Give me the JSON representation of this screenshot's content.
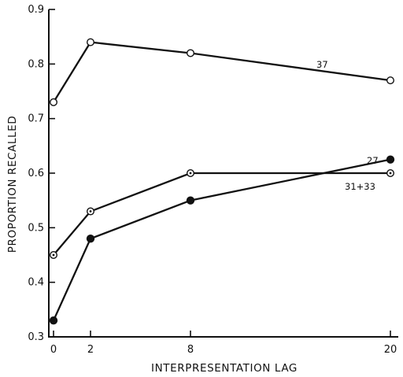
{
  "chart_data": {
    "type": "line",
    "title": "",
    "xlabel": "INTERPRESENTATION LAG",
    "ylabel": "PROPORTION RECALLED",
    "x": [
      0,
      2,
      8,
      20
    ],
    "xticks": [
      "0",
      "2",
      "8",
      "20"
    ],
    "xlim": [
      0,
      20
    ],
    "ylim": [
      0.3,
      0.9
    ],
    "yticks": [
      "0.3",
      "0.4",
      "0.5",
      "0.6",
      "0.7",
      "0.8",
      "0.9"
    ],
    "grid": false,
    "series": [
      {
        "name": "37",
        "marker": "open",
        "values": [
          0.73,
          0.84,
          0.82,
          0.77
        ]
      },
      {
        "name": "31+33",
        "marker": "dotted-open",
        "values": [
          0.45,
          0.53,
          0.6,
          0.6
        ]
      },
      {
        "name": "27",
        "marker": "filled",
        "values": [
          0.33,
          0.48,
          0.55,
          0.625
        ]
      }
    ]
  }
}
